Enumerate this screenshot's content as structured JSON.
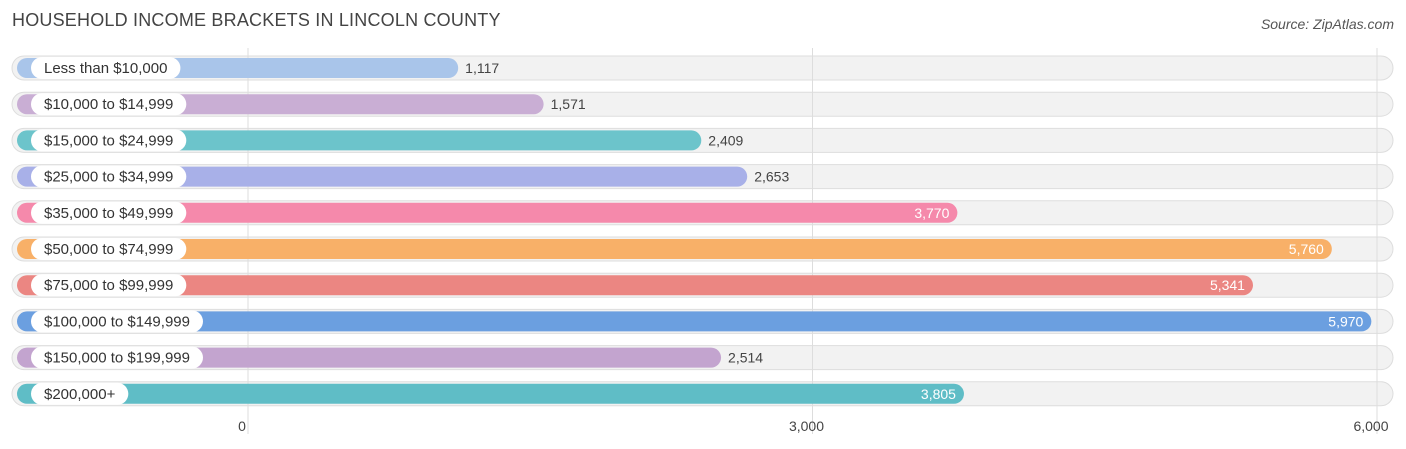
{
  "title": "HOUSEHOLD INCOME BRACKETS IN LINCOLN COUNTY",
  "source": "Source: ZipAtlas.com",
  "chart_data": {
    "type": "bar",
    "orientation": "horizontal",
    "title": "HOUSEHOLD INCOME BRACKETS IN LINCOLN COUNTY",
    "xlabel": "",
    "ylabel": "",
    "xlim": [
      0,
      6000
    ],
    "ticks": [
      0,
      3000,
      6000
    ],
    "tick_labels": [
      "0",
      "3,000",
      "6,000"
    ],
    "grid": true,
    "categories": [
      "Less than $10,000",
      "$10,000 to $14,999",
      "$15,000 to $24,999",
      "$25,000 to $34,999",
      "$35,000 to $49,999",
      "$50,000 to $74,999",
      "$75,000 to $99,999",
      "$100,000 to $149,999",
      "$150,000 to $199,999",
      "$200,000+"
    ],
    "values": [
      1117,
      1571,
      2409,
      2653,
      3770,
      5760,
      5341,
      5970,
      2514,
      3805
    ],
    "value_labels": [
      "1,117",
      "1,571",
      "2,409",
      "2,653",
      "3,770",
      "5,760",
      "5,341",
      "5,970",
      "2,514",
      "3,805"
    ],
    "colors": [
      "#a9c5ea",
      "#c9aed4",
      "#6cc4cb",
      "#a8b0e8",
      "#f589ab",
      "#f8b068",
      "#eb8682",
      "#6b9fe0",
      "#c3a4cf",
      "#5fbdc6"
    ]
  }
}
